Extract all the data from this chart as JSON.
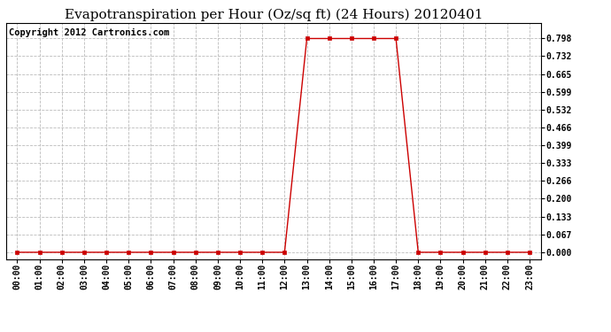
{
  "title": "Evapotranspiration per Hour (Oz/sq ft) (24 Hours) 20120401",
  "copyright_text": "Copyright 2012 Cartronics.com",
  "background_color": "#ffffff",
  "plot_bg_color": "#ffffff",
  "line_color": "#cc0000",
  "marker": "s",
  "marker_size": 3,
  "grid_color": "#bbbbbb",
  "grid_style": "--",
  "hours": [
    0,
    1,
    2,
    3,
    4,
    5,
    6,
    7,
    8,
    9,
    10,
    11,
    12,
    13,
    14,
    15,
    16,
    17,
    18,
    19,
    20,
    21,
    22,
    23
  ],
  "values": [
    0.0,
    0.0,
    0.0,
    0.0,
    0.0,
    0.0,
    0.0,
    0.0,
    0.0,
    0.0,
    0.0,
    0.0,
    0.0,
    0.798,
    0.798,
    0.798,
    0.798,
    0.798,
    0.0,
    0.0,
    0.0,
    0.0,
    0.0,
    0.0
  ],
  "yticks": [
    0.0,
    0.067,
    0.133,
    0.2,
    0.266,
    0.333,
    0.399,
    0.466,
    0.532,
    0.599,
    0.665,
    0.732,
    0.798
  ],
  "ylim": [
    -0.025,
    0.855
  ],
  "x_labels": [
    "00:00",
    "01:00",
    "02:00",
    "03:00",
    "04:00",
    "05:00",
    "06:00",
    "07:00",
    "08:00",
    "09:00",
    "10:00",
    "11:00",
    "12:00",
    "13:00",
    "14:00",
    "15:00",
    "16:00",
    "17:00",
    "18:00",
    "19:00",
    "20:00",
    "21:00",
    "22:00",
    "23:00"
  ],
  "title_fontsize": 11,
  "tick_fontsize": 7,
  "copyright_fontsize": 7.5
}
